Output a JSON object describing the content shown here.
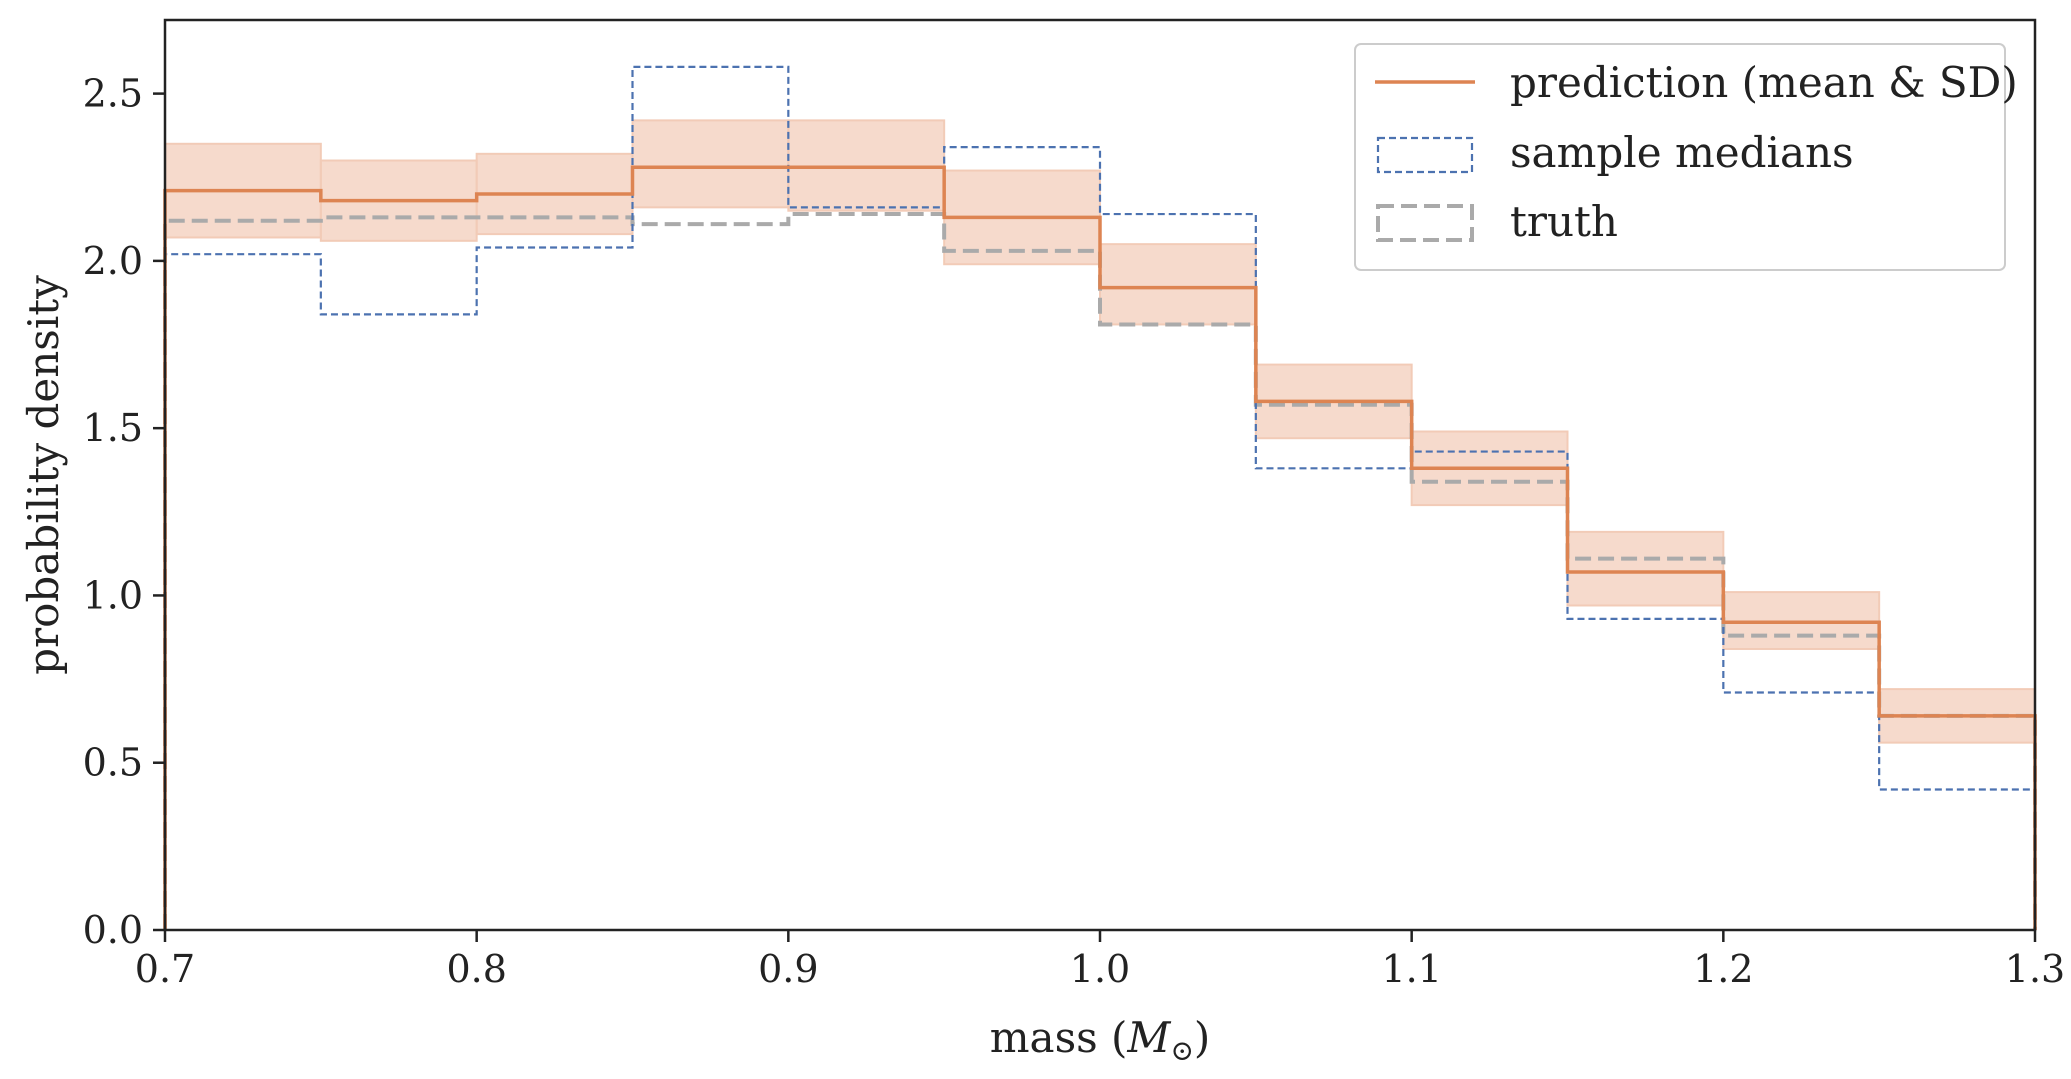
{
  "chart_data": {
    "type": "line",
    "style": "step-histogram",
    "title": "",
    "xlabel_text": "mass (",
    "xlabel_symbol": "M",
    "xlabel_sub": "⊙",
    "xlabel_close": ")",
    "ylabel": "probability density",
    "xlim": [
      0.7,
      1.3
    ],
    "ylim": [
      0.0,
      2.72
    ],
    "grid": false,
    "legend_position": "top-right",
    "x_ticks": [
      0.7,
      0.8,
      0.9,
      1.0,
      1.1,
      1.2,
      1.3
    ],
    "x_tick_labels": [
      "0.7",
      "0.8",
      "0.9",
      "1.0",
      "1.1",
      "1.2",
      "1.3"
    ],
    "y_ticks": [
      0.0,
      0.5,
      1.0,
      1.5,
      2.0,
      2.5
    ],
    "y_tick_labels": [
      "0.0",
      "0.5",
      "1.0",
      "1.5",
      "2.0",
      "2.5"
    ],
    "bin_edges": [
      0.7,
      0.75,
      0.8,
      0.85,
      0.9,
      0.95,
      1.0,
      1.05,
      1.1,
      1.15,
      1.2,
      1.25,
      1.3
    ],
    "series": [
      {
        "name": "prediction (mean & SD)",
        "color": "#dd8452",
        "band_color": "#f2cbb7",
        "values": [
          2.21,
          2.18,
          2.2,
          2.28,
          2.28,
          2.13,
          1.92,
          1.58,
          1.38,
          1.07,
          0.92,
          0.64
        ],
        "sd_lower": [
          2.07,
          2.06,
          2.08,
          2.16,
          2.15,
          1.99,
          1.81,
          1.47,
          1.27,
          0.97,
          0.84,
          0.56
        ],
        "sd_upper": [
          2.35,
          2.3,
          2.32,
          2.42,
          2.42,
          2.27,
          2.05,
          1.69,
          1.49,
          1.19,
          1.01,
          0.72
        ]
      },
      {
        "name": "sample medians",
        "color": "#4c72b0",
        "values": [
          2.02,
          1.84,
          2.04,
          2.58,
          2.16,
          2.34,
          2.14,
          1.38,
          1.43,
          0.93,
          0.71,
          0.42
        ]
      },
      {
        "name": "truth",
        "color": "#aaaaaa",
        "values": [
          2.12,
          2.13,
          2.13,
          2.11,
          2.14,
          2.03,
          1.81,
          1.57,
          1.34,
          1.11,
          0.88,
          0.64
        ]
      }
    ]
  }
}
